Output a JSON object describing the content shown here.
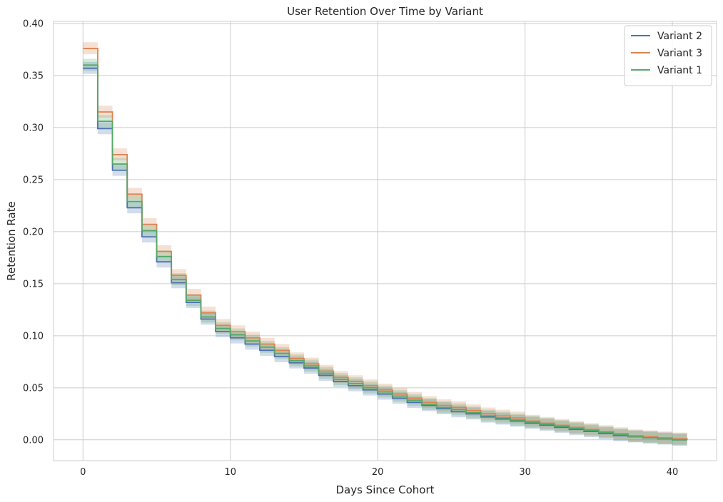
{
  "chart_data": {
    "type": "line",
    "drawstyle": "steps-post",
    "title": "User Retention Over Time by Variant",
    "xlabel": "Days Since Cohort",
    "ylabel": "Retention Rate",
    "xlim": [
      -2,
      43
    ],
    "ylim": [
      -0.02,
      0.402
    ],
    "xticks": [
      0,
      10,
      20,
      30,
      40
    ],
    "yticks": [
      0.0,
      0.05,
      0.1,
      0.15,
      0.2,
      0.25,
      0.3,
      0.35,
      0.4
    ],
    "grid": true,
    "legend_position": "top-right",
    "series": [
      {
        "name": "Variant 2",
        "color": "#4c72b0",
        "band": 0.006,
        "x": [
          0,
          1,
          2,
          3,
          4,
          5,
          6,
          7,
          8,
          9,
          10,
          11,
          12,
          13,
          14,
          15,
          16,
          17,
          18,
          19,
          20,
          21,
          22,
          23,
          24,
          25,
          26,
          27,
          28,
          29,
          30,
          31,
          32,
          33,
          34,
          35,
          36,
          37,
          38,
          39,
          40,
          41
        ],
        "y": [
          0.357,
          0.299,
          0.259,
          0.223,
          0.195,
          0.171,
          0.151,
          0.132,
          0.116,
          0.104,
          0.098,
          0.092,
          0.086,
          0.08,
          0.074,
          0.069,
          0.062,
          0.056,
          0.052,
          0.048,
          0.044,
          0.04,
          0.036,
          0.033,
          0.03,
          0.027,
          0.025,
          0.022,
          0.02,
          0.018,
          0.016,
          0.014,
          0.012,
          0.01,
          0.008,
          0.006,
          0.004,
          0.003,
          0.002,
          0.001,
          0.0,
          0.0
        ]
      },
      {
        "name": "Variant 3",
        "color": "#dd8452",
        "band": 0.006,
        "x": [
          0,
          1,
          2,
          3,
          4,
          5,
          6,
          7,
          8,
          9,
          10,
          11,
          12,
          13,
          14,
          15,
          16,
          17,
          18,
          19,
          20,
          21,
          22,
          23,
          24,
          25,
          26,
          27,
          28,
          29,
          30,
          31,
          32,
          33,
          34,
          35,
          36,
          37,
          38,
          39,
          40,
          41
        ],
        "y": [
          0.376,
          0.315,
          0.274,
          0.236,
          0.207,
          0.181,
          0.158,
          0.139,
          0.122,
          0.11,
          0.104,
          0.098,
          0.092,
          0.086,
          0.078,
          0.073,
          0.066,
          0.06,
          0.056,
          0.052,
          0.048,
          0.044,
          0.04,
          0.036,
          0.033,
          0.031,
          0.028,
          0.025,
          0.023,
          0.021,
          0.018,
          0.016,
          0.014,
          0.012,
          0.01,
          0.008,
          0.006,
          0.004,
          0.003,
          0.002,
          0.001,
          0.0
        ]
      },
      {
        "name": "Variant 1",
        "color": "#55a868",
        "band": 0.006,
        "x": [
          0,
          1,
          2,
          3,
          4,
          5,
          6,
          7,
          8,
          9,
          10,
          11,
          12,
          13,
          14,
          15,
          16,
          17,
          18,
          19,
          20,
          21,
          22,
          23,
          24,
          25,
          26,
          27,
          28,
          29,
          30,
          31,
          32,
          33,
          34,
          35,
          36,
          37,
          38,
          39,
          40,
          41
        ],
        "y": [
          0.36,
          0.306,
          0.265,
          0.229,
          0.201,
          0.176,
          0.154,
          0.134,
          0.118,
          0.107,
          0.101,
          0.095,
          0.089,
          0.083,
          0.076,
          0.071,
          0.064,
          0.058,
          0.054,
          0.05,
          0.046,
          0.042,
          0.038,
          0.034,
          0.031,
          0.029,
          0.026,
          0.023,
          0.021,
          0.019,
          0.017,
          0.015,
          0.013,
          0.011,
          0.009,
          0.007,
          0.005,
          0.003,
          0.002,
          0.001,
          0.0,
          0.0
        ]
      }
    ]
  }
}
